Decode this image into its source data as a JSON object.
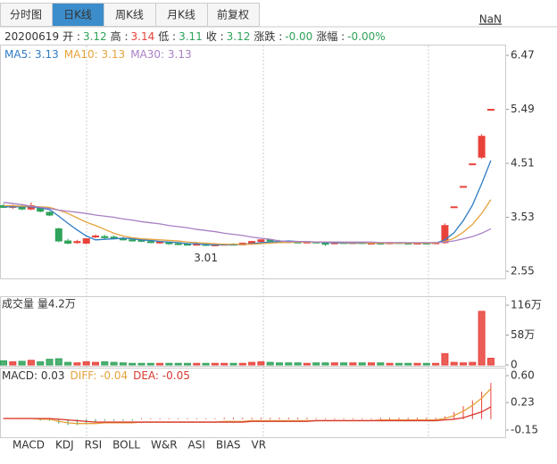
{
  "tabs": [
    {
      "label": "分时图"
    },
    {
      "label": "日K线",
      "active": true
    },
    {
      "label": "周K线"
    },
    {
      "label": "月K线"
    },
    {
      "label": "前复权"
    }
  ],
  "top_right": "NaN",
  "info": {
    "date": "20200619",
    "fields": [
      {
        "label": "开 :",
        "value": "3.12",
        "color": "#2fa35a"
      },
      {
        "label": "高 :",
        "value": "3.14",
        "color": "#e8423a"
      },
      {
        "label": "低 :",
        "value": "3.11",
        "color": "#2fa35a"
      },
      {
        "label": "收 :",
        "value": "3.12",
        "color": "#2fa35a"
      },
      {
        "label": "涨跌 :",
        "value": "-0.00",
        "color": "#2fa35a"
      },
      {
        "label": "涨幅 :",
        "value": "-0.00%",
        "color": "#2fa35a"
      }
    ]
  },
  "chart_data": {
    "type": "candlestick",
    "open": [
      3.74,
      3.71,
      3.73,
      3.68,
      3.7,
      3.62,
      3.32,
      3.1,
      3.07,
      3.06,
      3.18,
      3.18,
      3.17,
      3.14,
      3.12,
      3.11,
      3.09,
      3.07,
      3.07,
      3.05,
      3.04,
      3.03,
      3.04,
      3.02,
      3.03,
      3.04,
      3.03,
      3.06,
      3.09,
      3.12,
      3.1,
      3.09,
      3.08,
      3.07,
      3.08,
      3.07,
      3.05,
      3.07,
      3.06,
      3.07,
      3.06,
      3.06,
      3.05,
      3.07,
      3.06,
      3.05,
      3.06,
      3.05,
      3.07,
      3.72,
      4.09,
      4.5,
      4.62,
      5.49
    ],
    "high": [
      3.78,
      3.76,
      3.76,
      3.8,
      3.72,
      3.64,
      3.34,
      3.14,
      3.12,
      3.15,
      3.22,
      3.21,
      3.2,
      3.17,
      3.14,
      3.13,
      3.11,
      3.1,
      3.08,
      3.07,
      3.06,
      3.05,
      3.05,
      3.04,
      3.05,
      3.06,
      3.07,
      3.1,
      3.13,
      3.14,
      3.12,
      3.11,
      3.1,
      3.09,
      3.09,
      3.08,
      3.08,
      3.08,
      3.08,
      3.08,
      3.07,
      3.08,
      3.08,
      3.08,
      3.07,
      3.07,
      3.07,
      3.08,
      3.42,
      3.72,
      4.09,
      4.5,
      5.04,
      5.49
    ],
    "low": [
      3.7,
      3.68,
      3.66,
      3.66,
      3.62,
      3.55,
      3.08,
      3.04,
      3.05,
      3.04,
      3.15,
      3.14,
      3.13,
      3.11,
      3.09,
      3.08,
      3.06,
      3.05,
      3.03,
      3.03,
      3.02,
      3.02,
      3.01,
      3.01,
      3.02,
      3.02,
      3.02,
      3.05,
      3.08,
      3.09,
      3.08,
      3.07,
      3.06,
      3.06,
      3.06,
      3.01,
      3.04,
      3.05,
      3.05,
      3.05,
      3.05,
      3.03,
      3.04,
      3.05,
      3.04,
      3.04,
      3.04,
      3.04,
      3.05,
      3.72,
      4.09,
      4.5,
      4.59,
      5.49
    ],
    "close": [
      3.71,
      3.73,
      3.68,
      3.74,
      3.64,
      3.57,
      3.1,
      3.06,
      3.09,
      3.14,
      3.19,
      3.16,
      3.14,
      3.12,
      3.1,
      3.1,
      3.07,
      3.08,
      3.05,
      3.04,
      3.03,
      3.04,
      3.02,
      3.03,
      3.04,
      3.03,
      3.06,
      3.09,
      3.12,
      3.1,
      3.09,
      3.08,
      3.07,
      3.08,
      3.07,
      3.04,
      3.07,
      3.06,
      3.07,
      3.06,
      3.06,
      3.05,
      3.07,
      3.06,
      3.05,
      3.06,
      3.05,
      3.07,
      3.38,
      3.72,
      4.09,
      4.5,
      5.0,
      5.49
    ],
    "up_color": "#e8423a",
    "down_color": "#2fa35a",
    "ylim": [
      2.55,
      6.47
    ],
    "yticks": [
      2.55,
      3.53,
      4.51,
      5.49,
      6.47
    ],
    "low_marker": 3.01,
    "ma_lines": [
      {
        "name": "MA5: 3.13",
        "color": "#2f7cc4",
        "values": [
          3.72,
          3.72,
          3.72,
          3.72,
          3.7,
          3.67,
          3.55,
          3.42,
          3.3,
          3.19,
          3.12,
          3.13,
          3.14,
          3.15,
          3.14,
          3.12,
          3.11,
          3.09,
          3.08,
          3.07,
          3.05,
          3.05,
          3.03,
          3.03,
          3.03,
          3.03,
          3.04,
          3.05,
          3.07,
          3.08,
          3.09,
          3.1,
          3.09,
          3.08,
          3.08,
          3.07,
          3.07,
          3.06,
          3.06,
          3.06,
          3.06,
          3.06,
          3.06,
          3.06,
          3.06,
          3.06,
          3.06,
          3.06,
          3.12,
          3.25,
          3.47,
          3.75,
          4.14,
          4.56
        ]
      },
      {
        "name": "MA10: 3.13",
        "color": "#e6a23c",
        "values": [
          3.74,
          3.74,
          3.73,
          3.73,
          3.72,
          3.71,
          3.66,
          3.6,
          3.52,
          3.44,
          3.38,
          3.31,
          3.24,
          3.19,
          3.16,
          3.14,
          3.13,
          3.12,
          3.11,
          3.1,
          3.08,
          3.07,
          3.06,
          3.05,
          3.04,
          3.04,
          3.04,
          3.04,
          3.05,
          3.06,
          3.07,
          3.07,
          3.08,
          3.08,
          3.08,
          3.08,
          3.08,
          3.07,
          3.07,
          3.07,
          3.06,
          3.06,
          3.06,
          3.06,
          3.06,
          3.06,
          3.06,
          3.06,
          3.09,
          3.15,
          3.26,
          3.4,
          3.6,
          3.85
        ]
      },
      {
        "name": "MA30: 3.13",
        "color": "#a97fc4",
        "values": [
          3.8,
          3.78,
          3.76,
          3.73,
          3.71,
          3.69,
          3.66,
          3.64,
          3.62,
          3.6,
          3.57,
          3.55,
          3.53,
          3.5,
          3.48,
          3.45,
          3.43,
          3.41,
          3.38,
          3.36,
          3.34,
          3.31,
          3.29,
          3.27,
          3.24,
          3.22,
          3.2,
          3.17,
          3.15,
          3.13,
          3.1,
          3.09,
          3.09,
          3.09,
          3.08,
          3.08,
          3.08,
          3.08,
          3.08,
          3.08,
          3.08,
          3.07,
          3.07,
          3.07,
          3.07,
          3.07,
          3.07,
          3.07,
          3.08,
          3.1,
          3.14,
          3.18,
          3.24,
          3.32
        ]
      }
    ],
    "volume": {
      "title": "成交量 量4.2万",
      "values": [
        8,
        6,
        7,
        9,
        6,
        11,
        12,
        5,
        4,
        6,
        5,
        6,
        5,
        4,
        3,
        3,
        3,
        3,
        3,
        3,
        3,
        3,
        3,
        3,
        3,
        3,
        3,
        5,
        6,
        5,
        4,
        4,
        4,
        3,
        4,
        4,
        4,
        4,
        4,
        4,
        4,
        4,
        3,
        3,
        3,
        3,
        3,
        3,
        22,
        5,
        4,
        5,
        104,
        13
      ],
      "ylim": [
        0,
        116
      ],
      "yticks": [
        0,
        {
          "value": 58,
          "label": "58万"
        },
        {
          "value": 116,
          "label": "116万"
        }
      ]
    },
    "macd": {
      "title": "MACD: 0.03",
      "histogram_color": "#e8423a",
      "histogram": [
        0,
        0,
        0,
        0,
        -0.02,
        -0.02,
        -0.06,
        -0.08,
        -0.08,
        -0.06,
        -0.04,
        -0.02,
        -0.02,
        -0.02,
        -0.02,
        0,
        0,
        0,
        0,
        0,
        0,
        0,
        0,
        0,
        0.02,
        0.02,
        0.02,
        0.02,
        0.02,
        0.02,
        0.02,
        0.02,
        0.02,
        0.02,
        0,
        0,
        0,
        0,
        0,
        0,
        0,
        0.02,
        0.02,
        0.02,
        0.02,
        0.02,
        0.02,
        0.02,
        0.04,
        0.1,
        0.18,
        0.26,
        0.38,
        0.5
      ],
      "series": [
        {
          "name": "DIFF: -0.04",
          "color": "#e6a23c",
          "values": [
            0.01,
            0.01,
            0.01,
            0.01,
            0.0,
            0.0,
            -0.03,
            -0.05,
            -0.06,
            -0.06,
            -0.06,
            -0.05,
            -0.05,
            -0.05,
            -0.05,
            -0.04,
            -0.04,
            -0.04,
            -0.04,
            -0.04,
            -0.04,
            -0.04,
            -0.04,
            -0.04,
            -0.03,
            -0.03,
            -0.03,
            -0.02,
            -0.02,
            -0.02,
            -0.02,
            -0.02,
            -0.02,
            -0.02,
            -0.02,
            -0.02,
            -0.02,
            -0.02,
            -0.02,
            -0.02,
            -0.02,
            -0.01,
            -0.01,
            -0.01,
            -0.01,
            -0.01,
            -0.01,
            -0.01,
            0.01,
            0.05,
            0.11,
            0.19,
            0.29,
            0.42
          ]
        },
        {
          "name": "DEA: -0.05",
          "color": "#d9382f",
          "values": [
            0.01,
            0.01,
            0.01,
            0.01,
            0.01,
            0.01,
            0.0,
            -0.01,
            -0.02,
            -0.03,
            -0.04,
            -0.04,
            -0.04,
            -0.04,
            -0.04,
            -0.04,
            -0.04,
            -0.04,
            -0.04,
            -0.04,
            -0.04,
            -0.04,
            -0.04,
            -0.04,
            -0.04,
            -0.04,
            -0.04,
            -0.03,
            -0.03,
            -0.03,
            -0.03,
            -0.03,
            -0.03,
            -0.03,
            -0.02,
            -0.02,
            -0.02,
            -0.02,
            -0.02,
            -0.02,
            -0.02,
            -0.02,
            -0.02,
            -0.02,
            -0.02,
            -0.02,
            -0.02,
            -0.02,
            -0.01,
            0.0,
            0.02,
            0.06,
            0.1,
            0.17
          ]
        }
      ],
      "ylim": [
        -0.15,
        0.6
      ],
      "yticks": [
        -0.15,
        0.23,
        {
          "value": 0.6,
          "label": "0.60"
        }
      ]
    }
  },
  "indicator_tabs": [
    {
      "label": "MACD",
      "active": true
    },
    {
      "label": "KDJ"
    },
    {
      "label": "RSI"
    },
    {
      "label": "BOLL"
    },
    {
      "label": "W&R"
    },
    {
      "label": "ASI"
    },
    {
      "label": "BIAS"
    },
    {
      "label": "VR"
    }
  ]
}
